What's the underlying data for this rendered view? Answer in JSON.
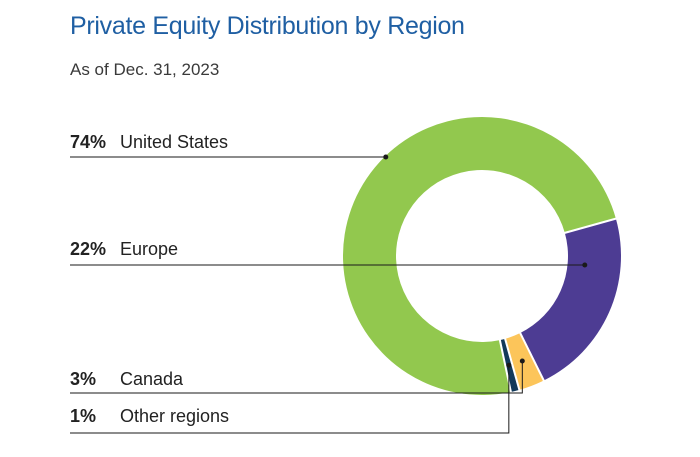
{
  "chart_data": {
    "type": "pie",
    "title": "Private Equity Distribution by Region",
    "subtitle": "As of Dec. 31, 2023",
    "legend": "left",
    "slices": [
      {
        "label": "United States",
        "value": 74,
        "display": "74%",
        "color": "#92c84e"
      },
      {
        "label": "Europe",
        "value": 22,
        "display": "22%",
        "color": "#4d3c93"
      },
      {
        "label": "Canada",
        "value": 3,
        "display": "3%",
        "color": "#fcc55a"
      },
      {
        "label": "Other regions",
        "value": 1,
        "display": "1%",
        "color": "#12395a"
      }
    ]
  }
}
